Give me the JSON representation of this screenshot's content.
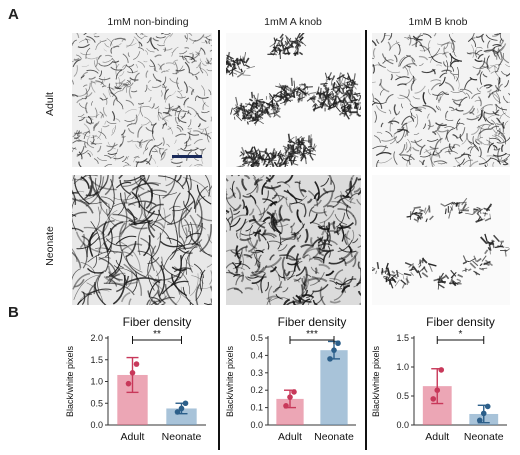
{
  "panels": {
    "a": "A",
    "b": "B"
  },
  "columns": [
    "1mM non-binding",
    "1mM A knob",
    "1mM B knob"
  ],
  "rows": [
    "Adult",
    "Neonate"
  ],
  "colors": {
    "adult": "#e06b84",
    "neonate": "#6e9bc0",
    "adult_dot": "#c8385a",
    "neonate_dot": "#2c5f8a"
  },
  "chart_data": [
    {
      "type": "bar",
      "title": "Fiber density",
      "ylabel": "Black/white pixels",
      "categories": [
        "Adult",
        "Neonate"
      ],
      "values": [
        1.15,
        0.38
      ],
      "errors": [
        0.4,
        0.12
      ],
      "points": [
        [
          0.95,
          1.2,
          1.4
        ],
        [
          0.3,
          0.38,
          0.5
        ]
      ],
      "ylim": [
        0,
        2.0
      ],
      "yticks": [
        "0.0",
        "0.5",
        "1.0",
        "1.5",
        "2.0"
      ],
      "significance": "**"
    },
    {
      "type": "bar",
      "title": "Fiber density",
      "ylabel": "Black/white pixels",
      "categories": [
        "Adult",
        "Neonate"
      ],
      "values": [
        0.15,
        0.43
      ],
      "errors": [
        0.05,
        0.05
      ],
      "points": [
        [
          0.11,
          0.16,
          0.19
        ],
        [
          0.38,
          0.43,
          0.47
        ]
      ],
      "ylim": [
        0,
        0.5
      ],
      "yticks": [
        "0.0",
        "0.1",
        "0.2",
        "0.3",
        "0.4",
        "0.5"
      ],
      "significance": "***"
    },
    {
      "type": "bar",
      "title": "Fiber density",
      "ylabel": "Black/white pixels",
      "categories": [
        "Adult",
        "Neonate"
      ],
      "values": [
        0.67,
        0.19
      ],
      "errors": [
        0.3,
        0.15
      ],
      "points": [
        [
          0.45,
          0.6,
          0.95
        ],
        [
          0.08,
          0.2,
          0.32
        ]
      ],
      "ylim": [
        0,
        1.5
      ],
      "yticks": [
        "0.0",
        "0.5",
        "1.0",
        "1.5"
      ],
      "significance": "*"
    }
  ]
}
